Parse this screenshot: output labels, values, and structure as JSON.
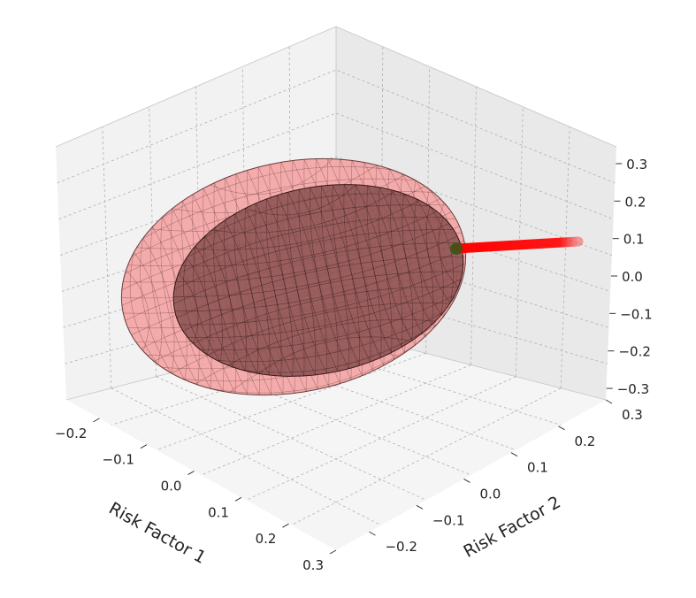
{
  "chart_data": {
    "type": "3d-surface",
    "axes": {
      "x": {
        "label": "Risk Factor 1",
        "ticks": [
          "−0.2",
          "−0.1",
          "0.0",
          "0.1",
          "0.2",
          "0.3"
        ],
        "range": [
          -0.27,
          0.3
        ]
      },
      "y": {
        "label": "Risk Factor 2",
        "ticks": [
          "−0.2",
          "−0.1",
          "0.0",
          "0.1",
          "0.2",
          "0.3"
        ],
        "range": [
          -0.27,
          0.3
        ]
      },
      "z": {
        "label": "",
        "ticks": [
          "−0.3",
          "−0.2",
          "−0.1",
          "0.0",
          "0.1",
          "0.2",
          "0.3"
        ],
        "range": [
          -0.34,
          0.34
        ]
      }
    },
    "grid": true,
    "colors": {
      "outer_ellipsoid": "#f08080",
      "inner_ellipsoid": "#5a2a2a",
      "wireframe": "#000000",
      "trajectory": "#ff0000",
      "point": "#2e5a1c"
    }
  }
}
